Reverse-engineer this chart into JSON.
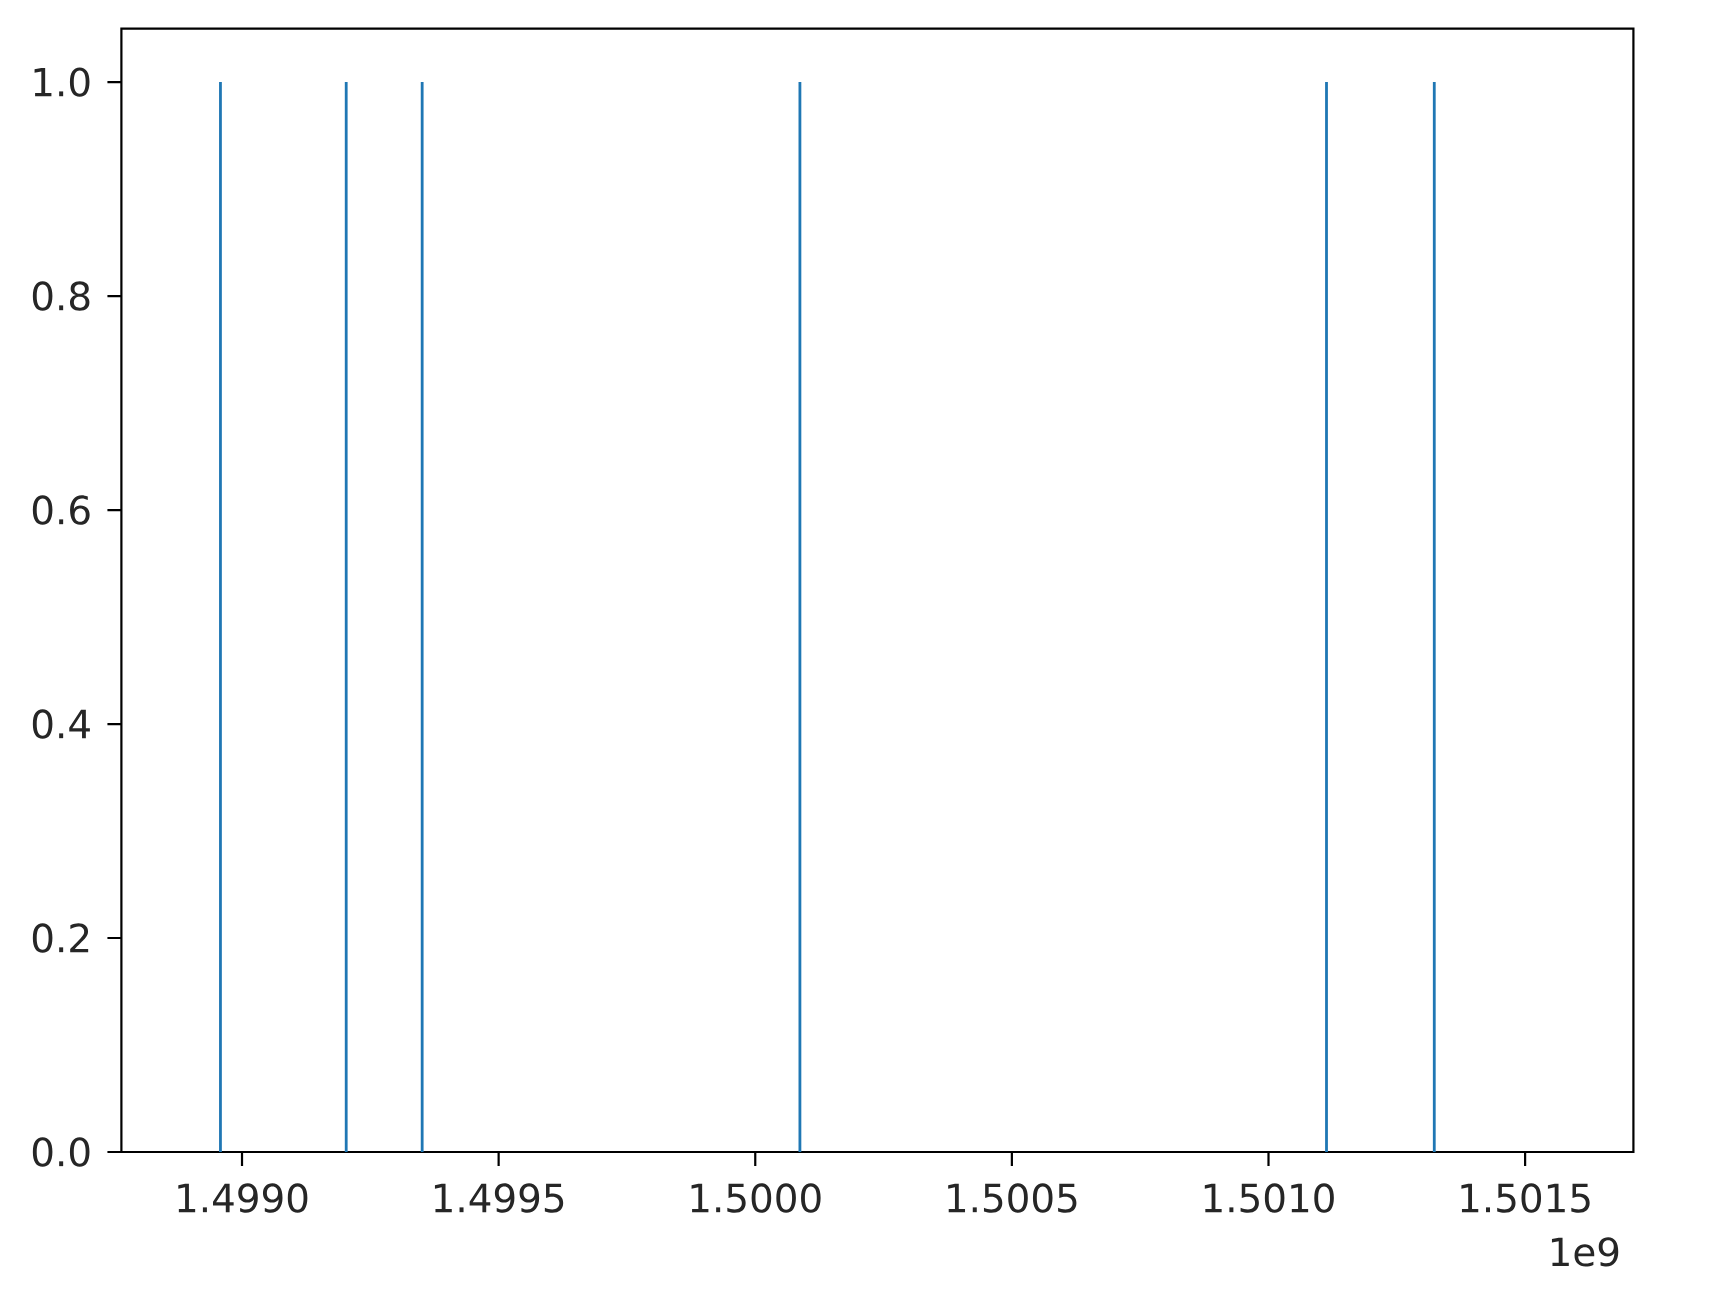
{
  "chart_data": {
    "type": "bar",
    "x": [
      1.498958,
      1.499203,
      1.499351,
      1.500087,
      1.501113,
      1.501323
    ],
    "values": [
      1,
      1,
      1,
      1,
      1,
      1
    ],
    "color": "#1f77b4",
    "xlim": [
      1.498765,
      1.501711
    ],
    "xticks": [
      {
        "value": 1.499,
        "label": "1.4990"
      },
      {
        "value": 1.4995,
        "label": "1.4995"
      },
      {
        "value": 1.5,
        "label": "1.5000"
      },
      {
        "value": 1.5005,
        "label": "1.5005"
      },
      {
        "value": 1.501,
        "label": "1.5010"
      },
      {
        "value": 1.5015,
        "label": "1.5015"
      }
    ],
    "ylim": [
      0,
      1.05
    ],
    "yticks": [
      {
        "value": 0,
        "label": "0.0"
      },
      {
        "value": 0.2,
        "label": "0.2"
      },
      {
        "value": 0.4,
        "label": "0.4"
      },
      {
        "value": 0.6,
        "label": "0.6"
      },
      {
        "value": 0.8,
        "label": "0.8"
      },
      {
        "value": 1,
        "label": "1.0"
      }
    ],
    "annotations": [
      "1e9"
    ]
  }
}
